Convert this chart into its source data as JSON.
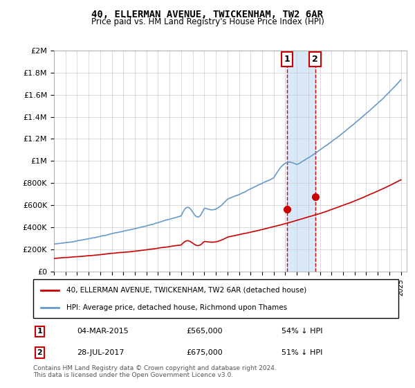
{
  "title": "40, ELLERMAN AVENUE, TWICKENHAM, TW2 6AR",
  "subtitle": "Price paid vs. HM Land Registry's House Price Index (HPI)",
  "legend_line1": "40, ELLERMAN AVENUE, TWICKENHAM, TW2 6AR (detached house)",
  "legend_line2": "HPI: Average price, detached house, Richmond upon Thames",
  "transaction1_label": "1",
  "transaction1_date": "04-MAR-2015",
  "transaction1_price": "£565,000",
  "transaction1_hpi": "54% ↓ HPI",
  "transaction2_label": "2",
  "transaction2_date": "28-JUL-2017",
  "transaction2_price": "£675,000",
  "transaction2_hpi": "51% ↓ HPI",
  "footer": "Contains HM Land Registry data © Crown copyright and database right 2024.\nThis data is licensed under the Open Government Licence v3.0.",
  "line_color_red": "#cc0000",
  "line_color_blue": "#6699cc",
  "shaded_region_color": "#d0e4f7",
  "dashed_line_color": "#cc0000",
  "background_color": "#ffffff",
  "grid_color": "#cccccc",
  "ylim": [
    0,
    2000000
  ],
  "xlim_start": 1995.0,
  "xlim_end": 2025.5,
  "transaction1_x": 2015.17,
  "transaction1_y": 565000,
  "transaction2_x": 2017.58,
  "transaction2_y": 675000
}
